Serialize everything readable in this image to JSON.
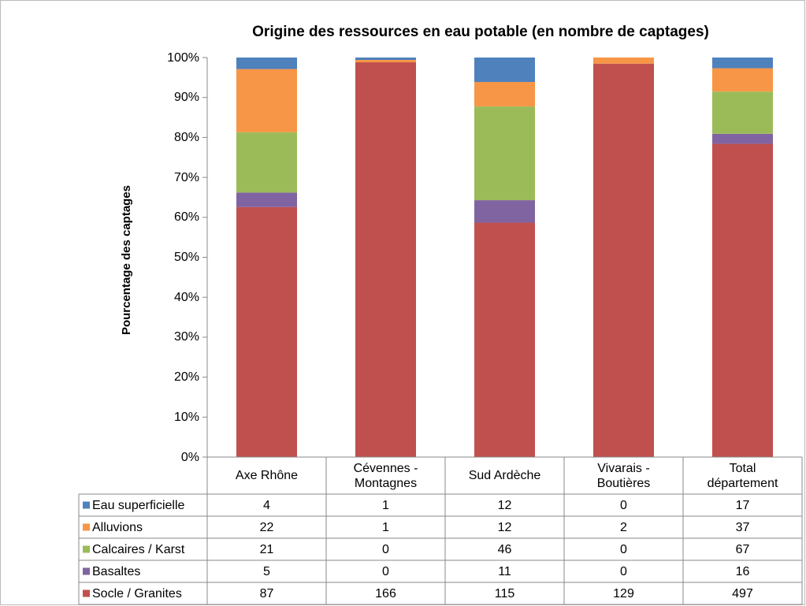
{
  "chart_data": {
    "type": "bar",
    "stacked": "percent",
    "title": "Origine des ressources en eau potable (en nombre de captages)",
    "y_label": "Pourcentage des captages",
    "categories": [
      "Axe Rhône",
      "Cévennes -\nMontagnes",
      "Sud Ardèche",
      "Vivarais -\nBoutières",
      "Total\ndépartement"
    ],
    "series": [
      {
        "name": "Eau superficielle",
        "color": "#4f81bd",
        "values": [
          4,
          1,
          12,
          0,
          17
        ]
      },
      {
        "name": "Alluvions",
        "color": "#f79646",
        "values": [
          22,
          1,
          12,
          2,
          37
        ]
      },
      {
        "name": "Calcaires / Karst",
        "color": "#9bbb59",
        "values": [
          21,
          0,
          46,
          0,
          67
        ]
      },
      {
        "name": "Basaltes",
        "color": "#8064a2",
        "values": [
          5,
          0,
          11,
          0,
          16
        ]
      },
      {
        "name": "Socle / Granites",
        "color": "#c0504d",
        "values": [
          87,
          166,
          115,
          129,
          497
        ]
      }
    ],
    "ylim": [
      0,
      100
    ],
    "yticks": [
      {
        "value": 0,
        "label": "0%"
      },
      {
        "value": 10,
        "label": "10%"
      },
      {
        "value": 20,
        "label": "20%"
      },
      {
        "value": 30,
        "label": "30%"
      },
      {
        "value": 40,
        "label": "40%"
      },
      {
        "value": 50,
        "label": "50%"
      },
      {
        "value": 60,
        "label": "60%"
      },
      {
        "value": 70,
        "label": "70%"
      },
      {
        "value": 80,
        "label": "80%"
      },
      {
        "value": 90,
        "label": "90%"
      },
      {
        "value": 100,
        "label": "100%"
      }
    ],
    "grid": false,
    "data_table": true
  }
}
